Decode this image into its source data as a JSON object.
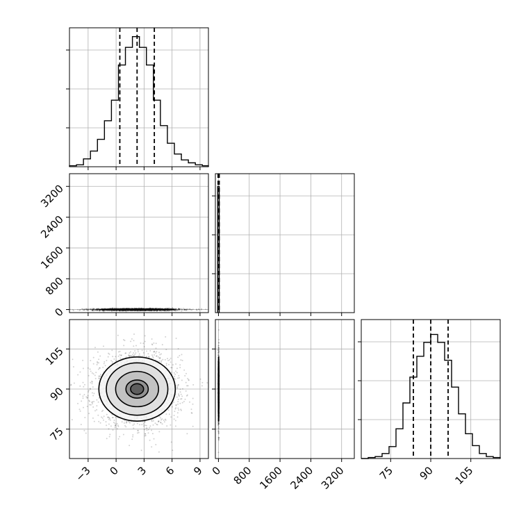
{
  "chart_data": {
    "type": "corner",
    "grid": true,
    "params": [
      {
        "ticks": [
          -3,
          0,
          3,
          6,
          9
        ],
        "tick_labels": [
          "−3",
          "0",
          "3",
          "6",
          "9"
        ],
        "range": [
          -5.0,
          9.9
        ],
        "quantiles": [
          0.4,
          2.25,
          4.1
        ]
      },
      {
        "ticks": [
          0,
          800,
          1600,
          2400,
          3200
        ],
        "tick_labels": [
          "0",
          "800",
          "1600",
          "2400",
          "3200"
        ],
        "range": [
          -80,
          3530
        ],
        "quantiles": [
          -10,
          2,
          20
        ]
      },
      {
        "ticks": [
          75,
          90,
          105
        ],
        "tick_labels": [
          "75",
          "90",
          "105"
        ],
        "range": [
          64,
          116
        ],
        "quantiles": [
          83.5,
          90,
          96.5
        ]
      }
    ],
    "hist_1d": [
      {
        "bin_edges": [
          -5.0,
          -4.25,
          -3.5,
          -2.75,
          -2.0,
          -1.25,
          -0.5,
          0.25,
          1.0,
          1.75,
          2.5,
          3.25,
          4.0,
          4.75,
          5.5,
          6.25,
          7.0,
          7.75,
          8.5,
          9.25,
          9.9
        ],
        "counts": [
          1,
          2,
          8,
          16,
          28,
          47,
          68,
          104,
          122,
          133,
          122,
          104,
          68,
          42,
          24,
          13,
          7,
          4,
          2,
          1
        ],
        "ylim": [
          0,
          142
        ]
      },
      {
        "bin_edges": [
          -20,
          0,
          20
        ],
        "counts": [
          1,
          1
        ],
        "ylim": [
          0,
          1.1
        ]
      },
      {
        "bin_edges": [
          64,
          66.6,
          69.2,
          71.8,
          74.4,
          77.0,
          79.6,
          82.2,
          84.8,
          87.4,
          90.0,
          92.6,
          95.2,
          97.8,
          100.4,
          103.0,
          105.6,
          108.2,
          110.8,
          113.4,
          116
        ],
        "counts": [
          0,
          1,
          2,
          5,
          12,
          30,
          56,
          82,
          103,
          117,
          125,
          117,
          99,
          72,
          45,
          25,
          13,
          5,
          2,
          1
        ],
        "ylim": [
          0,
          140
        ]
      }
    ],
    "scatter_2d": [
      {
        "x_param": 0,
        "y_param": 1,
        "center": [
          2.25,
          0
        ],
        "sd": [
          2.3,
          14
        ],
        "contour_levels": [
          {
            "rx": 2.4,
            "ry": 0.9
          },
          {
            "rx": 3.3,
            "ry": 1.3
          },
          {
            "rx": 4.0,
            "ry": 1.6
          }
        ]
      },
      {
        "x_param": 0,
        "y_param": 2,
        "center": [
          2.25,
          90
        ],
        "sd": [
          2.3,
          6.7
        ],
        "contour_levels": [
          {
            "rx": 0.7,
            "ry": 2.0
          },
          {
            "rx": 1.2,
            "ry": 3.4
          },
          {
            "rx": 2.3,
            "ry": 6.6
          },
          {
            "rx": 3.3,
            "ry": 9.8
          },
          {
            "rx": 4.1,
            "ry": 12.0
          }
        ]
      },
      {
        "x_param": 1,
        "y_param": 2,
        "center": [
          5,
          90
        ],
        "sd": [
          5,
          6.7
        ],
        "contour_levels": [
          {
            "rx": 3,
            "ry": 4
          },
          {
            "rx": 6,
            "ry": 8
          },
          {
            "rx": 9,
            "ry": 12
          }
        ]
      }
    ]
  }
}
